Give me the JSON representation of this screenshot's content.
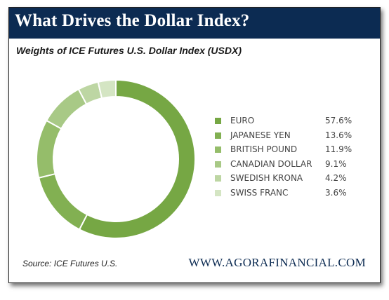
{
  "header": {
    "title": "What Drives the Dollar Index?"
  },
  "chart_data": {
    "type": "pie",
    "subtitle": "Weights of ICE Futures U.S. Dollar Index (USDX)",
    "style": "donut",
    "legend_position": "right",
    "categories": [
      "EURO",
      "JAPANESE YEN",
      "BRITISH POUND",
      "CANADIAN DOLLAR",
      "SWEDISH KRONA",
      "SWISS FRANC"
    ],
    "values": [
      57.6,
      13.6,
      11.9,
      9.1,
      4.2,
      3.6
    ],
    "value_labels": [
      "57.6%",
      "13.6%",
      "11.9%",
      "9.1%",
      "4.2%",
      "3.6%"
    ],
    "colors": [
      "#76a744",
      "#82b052",
      "#95bd6a",
      "#a8c986",
      "#bdd6a3",
      "#d4e5c3"
    ]
  },
  "footer": {
    "source": "Source: ICE Futures U.S.",
    "website": "WWW.AGORAFINANCIAL.COM"
  }
}
